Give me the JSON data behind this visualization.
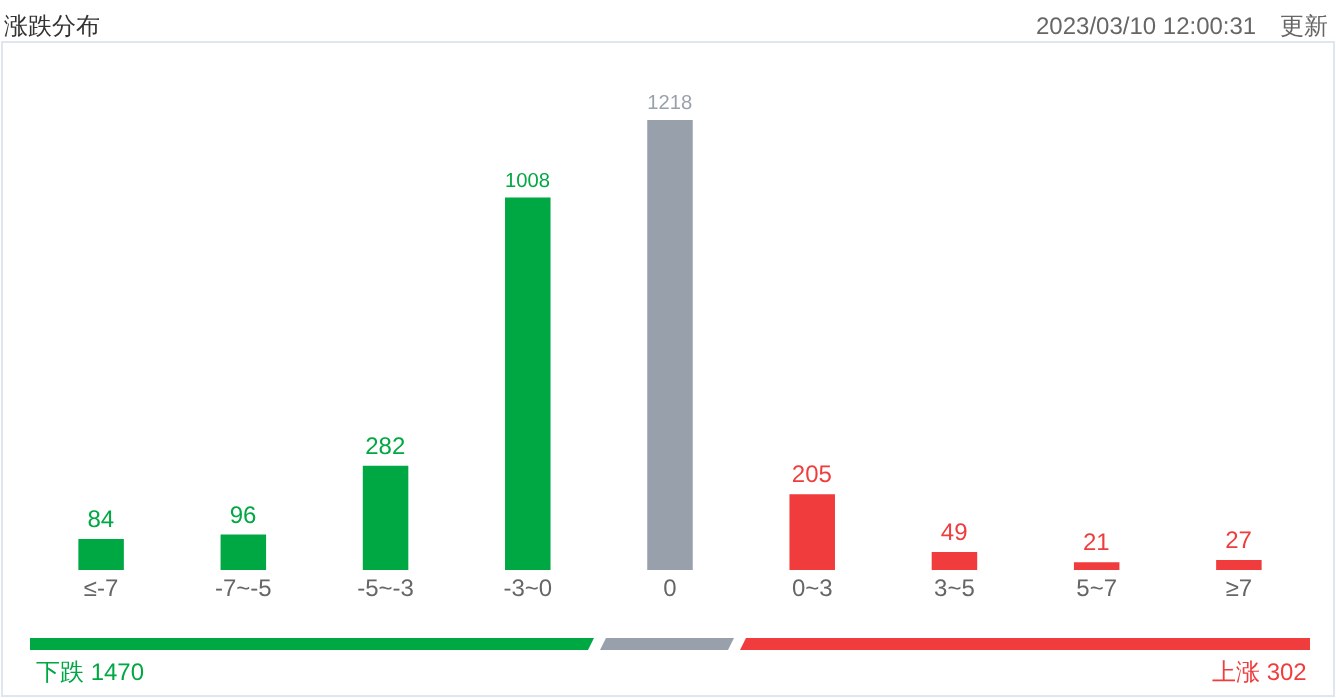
{
  "chart_data": {
    "type": "bar",
    "title": "涨跌分布",
    "categories": [
      "≤-7",
      "-7~-5",
      "-5~-3",
      "-3~0",
      "0",
      "0~3",
      "3~5",
      "5~7",
      "≥7"
    ],
    "values": [
      84,
      96,
      282,
      1008,
      1218,
      205,
      49,
      21,
      27
    ],
    "colors": [
      "#00a843",
      "#00a843",
      "#00a843",
      "#00a843",
      "#98a1ab",
      "#f03c3c",
      "#f03c3c",
      "#f03c3c",
      "#f03c3c"
    ],
    "data_labels": true,
    "annotations": [
      "2023/03/10 12:00:31",
      "更新",
      "下跌 1470",
      "上涨 302"
    ]
  }
}
